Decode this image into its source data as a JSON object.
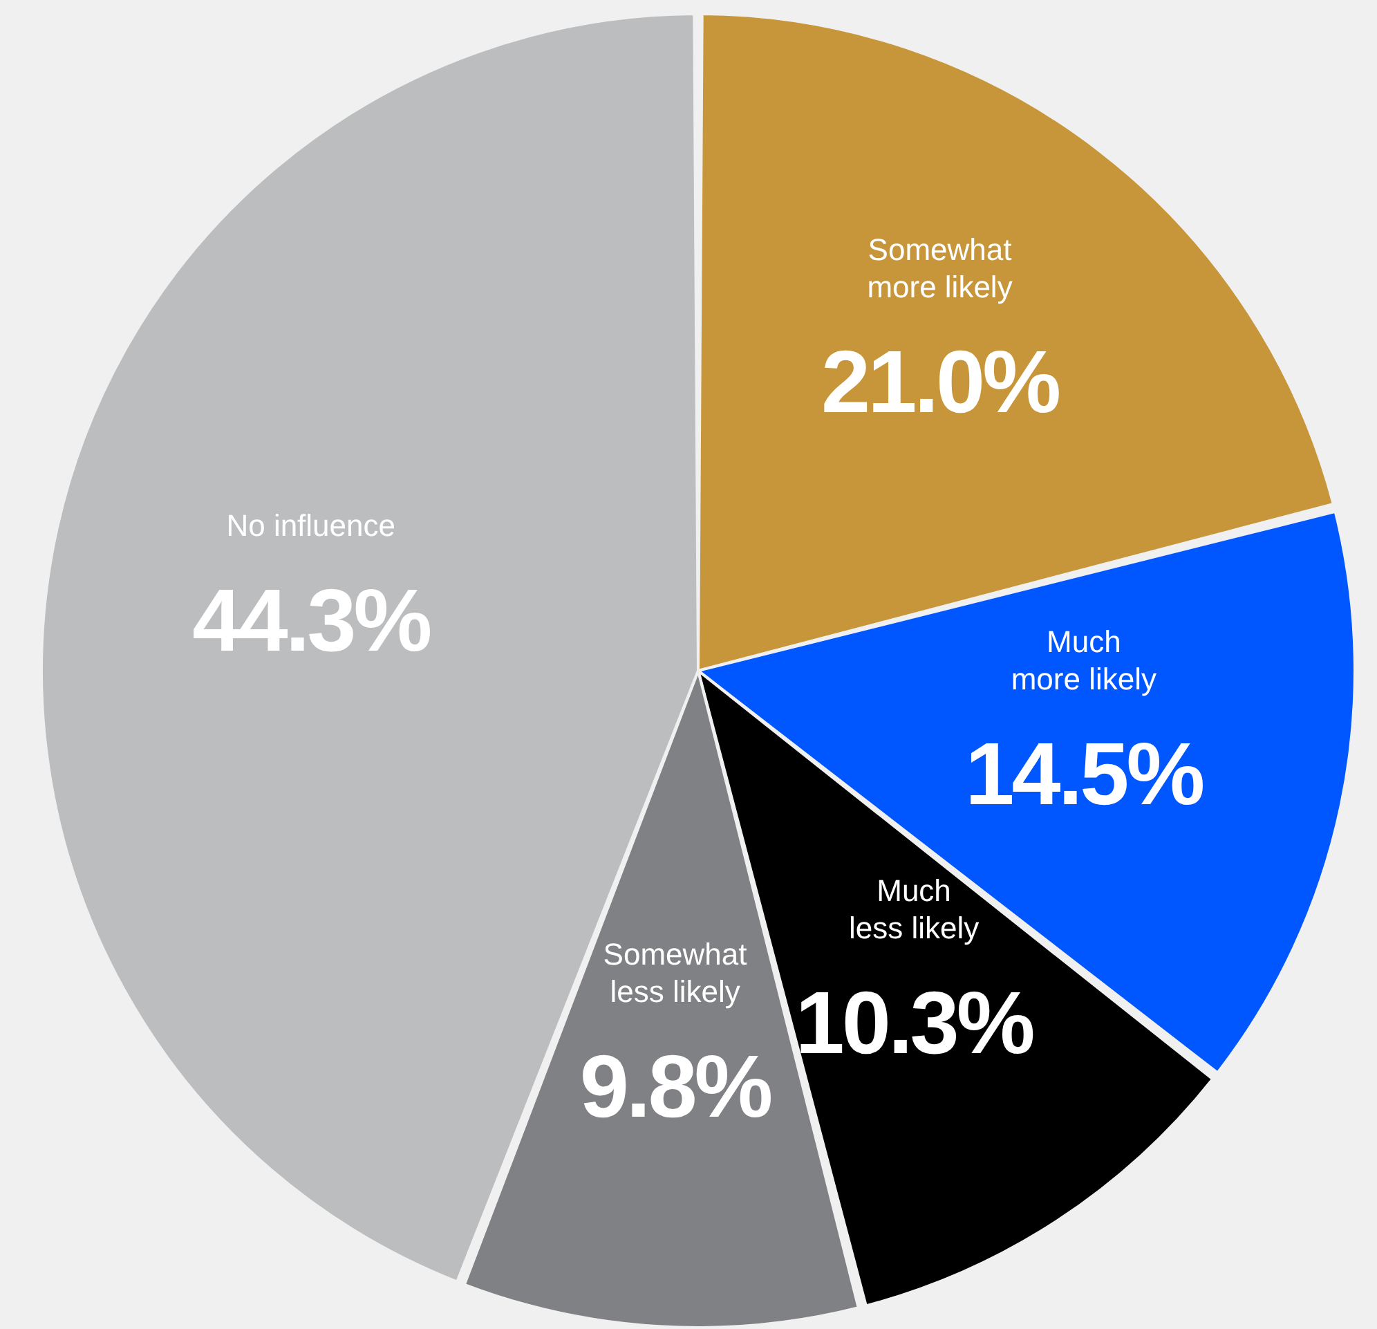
{
  "chart_data": {
    "type": "pie",
    "categories": [
      "Somewhat more likely",
      "Much more likely",
      "Much less likely",
      "Somewhat less likely",
      "No influence"
    ],
    "values": [
      21.0,
      14.5,
      10.3,
      9.8,
      44.3
    ],
    "value_labels": [
      "21.0%",
      "14.5%",
      "10.3%",
      "9.8%",
      "44.3%"
    ],
    "colors": [
      "#c8963a",
      "#0057ff",
      "#000000",
      "#808184",
      "#bcbdbf"
    ]
  }
}
